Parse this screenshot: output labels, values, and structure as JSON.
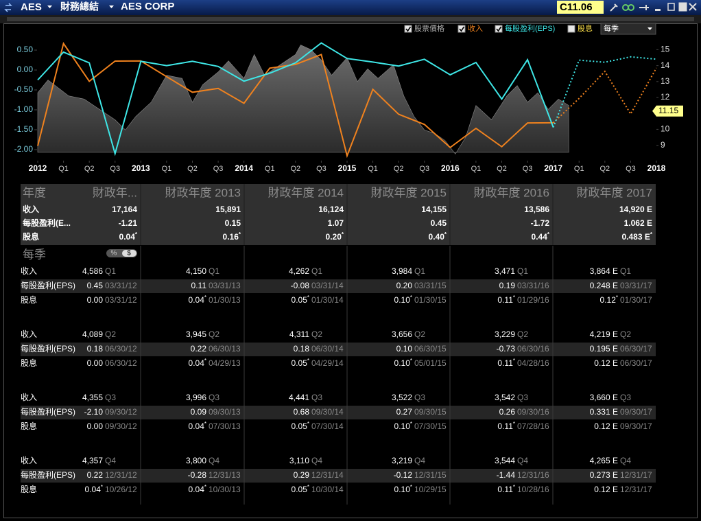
{
  "titlebar": {
    "symbol": "AES",
    "section": "財務總結",
    "company": "AES CORP",
    "quote": "C11.06"
  },
  "toolbar": {
    "dividend": "股息",
    "period": "每季"
  },
  "chart_data": {
    "type": "line",
    "xlim": [
      2012,
      2018
    ],
    "xticks": [
      {
        "value": 2012,
        "label": "2012"
      },
      {
        "value": 2012.25,
        "label": "Q1"
      },
      {
        "value": 2012.5,
        "label": "Q2"
      },
      {
        "value": 2012.75,
        "label": "Q3"
      },
      {
        "value": 2013,
        "label": "2013"
      },
      {
        "value": 2013.25,
        "label": "Q1"
      },
      {
        "value": 2013.5,
        "label": "Q2"
      },
      {
        "value": 2013.75,
        "label": "Q3"
      },
      {
        "value": 2014,
        "label": "2014"
      },
      {
        "value": 2014.25,
        "label": "Q1"
      },
      {
        "value": 2014.5,
        "label": "Q2"
      },
      {
        "value": 2014.75,
        "label": "Q3"
      },
      {
        "value": 2015,
        "label": "2015"
      },
      {
        "value": 2015.25,
        "label": "Q1"
      },
      {
        "value": 2015.5,
        "label": "Q2"
      },
      {
        "value": 2015.75,
        "label": "Q3"
      },
      {
        "value": 2016,
        "label": "2016"
      },
      {
        "value": 2016.25,
        "label": "Q1"
      },
      {
        "value": 2016.5,
        "label": "Q2"
      },
      {
        "value": 2016.75,
        "label": "Q3"
      },
      {
        "value": 2017,
        "label": "2017"
      },
      {
        "value": 2017.25,
        "label": "Q1"
      },
      {
        "value": 2017.5,
        "label": "Q2"
      },
      {
        "value": 2017.75,
        "label": "Q3"
      },
      {
        "value": 2018,
        "label": "2018"
      }
    ],
    "ylim": [
      -2.25,
      0.75
    ],
    "yticks": [
      {
        "value": 0.5,
        "label": "0.50"
      },
      {
        "value": 0,
        "label": "0.00"
      },
      {
        "value": -0.5,
        "label": "-0.50"
      },
      {
        "value": -1,
        "label": "-1.00"
      },
      {
        "value": -1.5,
        "label": "-1.50"
      },
      {
        "value": -2,
        "label": "-2.00"
      }
    ],
    "y2lim": [
      8.1,
      15.6
    ],
    "y2ticks": [
      9,
      10,
      11,
      12,
      13,
      14,
      15
    ],
    "y3lim": [
      3060,
      4630
    ],
    "last_price": 11.15,
    "series": [
      {
        "name": "股票價格",
        "color": "#9a9a9a",
        "axis": "y2",
        "fill": "area",
        "x": [
          2012.0,
          2012.1,
          2012.2,
          2012.3,
          2012.45,
          2012.6,
          2012.75,
          2012.85,
          2012.95,
          2013.1,
          2013.25,
          2013.4,
          2013.5,
          2013.6,
          2013.75,
          2013.85,
          2014.0,
          2014.1,
          2014.2,
          2014.35,
          2014.5,
          2014.55,
          2014.65,
          2014.75,
          2014.85,
          2015.0,
          2015.1,
          2015.2,
          2015.3,
          2015.45,
          2015.55,
          2015.65,
          2015.75,
          2015.85,
          2015.95,
          2016.05,
          2016.15,
          2016.25,
          2016.4,
          2016.55,
          2016.65,
          2016.75,
          2016.85,
          2016.95,
          2017.05,
          2017.15
        ],
        "values": [
          12.3,
          13.1,
          12.6,
          12.1,
          11.9,
          11.25,
          10.6,
          9.96,
          10.8,
          11.7,
          13.4,
          13.2,
          11.7,
          12.8,
          13.6,
          14.3,
          13.2,
          14.7,
          13.4,
          14.05,
          14.7,
          15.3,
          15,
          14.35,
          13.4,
          14.5,
          13,
          13.8,
          13.2,
          14.05,
          12.1,
          10.8,
          9.96,
          9.74,
          9.3,
          8.45,
          9.5,
          11.5,
          10.6,
          12.1,
          12.75,
          11.7,
          12.3,
          11.25,
          11.9,
          11.5
        ]
      },
      {
        "name": "收入",
        "color": "#f0821e",
        "axis": "y3",
        "estimate_from": 20,
        "x": [
          2012,
          2012.25,
          2012.5,
          2012.75,
          2013,
          2013.25,
          2013.5,
          2013.75,
          2014,
          2014.25,
          2014.5,
          2014.75,
          2015,
          2015.25,
          2015.5,
          2015.75,
          2016,
          2016.25,
          2016.5,
          2016.75,
          2017,
          2017.25,
          2017.5,
          2017.75,
          2018
        ],
        "values": [
          3240,
          4586,
          4089,
          4355,
          4357,
          4150,
          3945,
          3996,
          3800,
          4262,
          4311,
          4441,
          3110,
          3984,
          3656,
          3522,
          3219,
          3471,
          3229,
          3542,
          3544,
          3864,
          4219,
          3660,
          4265
        ]
      },
      {
        "name": "每股盈利(EPS)",
        "color": "#3ee6e6",
        "axis": "y",
        "estimate_from": 20,
        "x": [
          2012,
          2012.25,
          2012.5,
          2012.75,
          2013,
          2013.25,
          2013.5,
          2013.75,
          2014,
          2014.25,
          2014.5,
          2014.75,
          2015,
          2015.25,
          2015.5,
          2015.75,
          2016,
          2016.25,
          2016.5,
          2016.75,
          2017,
          2017.25,
          2017.5,
          2017.75,
          2018
        ],
        "values": [
          -0.25,
          0.45,
          0.18,
          -2.1,
          0.22,
          0.11,
          0.22,
          0.09,
          -0.28,
          -0.08,
          0.18,
          0.68,
          0.29,
          0.2,
          0.1,
          0.27,
          -0.12,
          0.19,
          -0.73,
          0.26,
          -1.44,
          0.248,
          0.195,
          0.331,
          0.273
        ]
      }
    ]
  },
  "annual": {
    "header": [
      "年度",
      "財政年...",
      "財政年度 2013",
      "財政年度 2014",
      "財政年度 2015",
      "財政年度 2016",
      "財政年度 2017"
    ],
    "rows": [
      {
        "label": "收入",
        "values": [
          "17,164",
          "15,891",
          "16,124",
          "14,155",
          "13,586",
          "14,920 E"
        ]
      },
      {
        "label": "每股盈利(E...",
        "values": [
          "-1.21",
          "0.15",
          "1.07",
          "0.45",
          "-1.72",
          "1.062 E"
        ]
      },
      {
        "label": "股息",
        "values": [
          "0.04*",
          "0.16*",
          "0.20*",
          "0.40*",
          "0.44*",
          "0.483 E*"
        ]
      }
    ]
  },
  "quarterly": {
    "title": "每季",
    "toggle": [
      "%",
      "$"
    ],
    "row_labels": [
      "收入",
      "每股盈利(EPS)",
      "股息"
    ],
    "blocks": [
      {
        "quarter": "Q1",
        "cells": [
          {
            "revenue": "4,586",
            "eps": "0.45",
            "eps_date": "03/31/12",
            "div": "0.00",
            "div_date": "03/31/12"
          },
          {
            "revenue": "4,150",
            "eps": "0.11",
            "eps_date": "03/31/13",
            "div": "0.04*",
            "div_date": "01/30/13"
          },
          {
            "revenue": "4,262",
            "eps": "-0.08",
            "eps_date": "03/31/14",
            "div": "0.05*",
            "div_date": "01/30/14"
          },
          {
            "revenue": "3,984",
            "eps": "0.20",
            "eps_date": "03/31/15",
            "div": "0.10*",
            "div_date": "01/30/15"
          },
          {
            "revenue": "3,471",
            "eps": "0.19",
            "eps_date": "03/31/16",
            "div": "0.11*",
            "div_date": "01/29/16"
          },
          {
            "revenue": "3,864 E",
            "eps": "0.248 E",
            "eps_date": "03/31/17",
            "div": "0.12*",
            "div_date": "01/30/17"
          }
        ]
      },
      {
        "quarter": "Q2",
        "cells": [
          {
            "revenue": "4,089",
            "eps": "0.18",
            "eps_date": "06/30/12",
            "div": "0.00",
            "div_date": "06/30/12"
          },
          {
            "revenue": "3,945",
            "eps": "0.22",
            "eps_date": "06/30/13",
            "div": "0.04*",
            "div_date": "04/29/13"
          },
          {
            "revenue": "4,311",
            "eps": "0.18",
            "eps_date": "06/30/14",
            "div": "0.05*",
            "div_date": "04/29/14"
          },
          {
            "revenue": "3,656",
            "eps": "0.10",
            "eps_date": "06/30/15",
            "div": "0.10*",
            "div_date": "05/01/15"
          },
          {
            "revenue": "3,229",
            "eps": "-0.73",
            "eps_date": "06/30/16",
            "div": "0.11*",
            "div_date": "04/28/16"
          },
          {
            "revenue": "4,219 E",
            "eps": "0.195 E",
            "eps_date": "06/30/17",
            "div": "0.12 E",
            "div_date": "06/30/17"
          }
        ]
      },
      {
        "quarter": "Q3",
        "cells": [
          {
            "revenue": "4,355",
            "eps": "-2.10",
            "eps_date": "09/30/12",
            "div": "0.00",
            "div_date": "09/30/12"
          },
          {
            "revenue": "3,996",
            "eps": "0.09",
            "eps_date": "09/30/13",
            "div": "0.04*",
            "div_date": "07/30/13"
          },
          {
            "revenue": "4,441",
            "eps": "0.68",
            "eps_date": "09/30/14",
            "div": "0.05*",
            "div_date": "07/30/14"
          },
          {
            "revenue": "3,522",
            "eps": "0.27",
            "eps_date": "09/30/15",
            "div": "0.10*",
            "div_date": "07/30/15"
          },
          {
            "revenue": "3,542",
            "eps": "0.26",
            "eps_date": "09/30/16",
            "div": "0.11*",
            "div_date": "07/28/16"
          },
          {
            "revenue": "3,660 E",
            "eps": "0.331 E",
            "eps_date": "09/30/17",
            "div": "0.12 E",
            "div_date": "09/30/17"
          }
        ]
      },
      {
        "quarter": "Q4",
        "cells": [
          {
            "revenue": "4,357",
            "eps": "0.22",
            "eps_date": "12/31/12",
            "div": "0.04*",
            "div_date": "10/26/12"
          },
          {
            "revenue": "3,800",
            "eps": "-0.28",
            "eps_date": "12/31/13",
            "div": "0.04*",
            "div_date": "10/30/13"
          },
          {
            "revenue": "3,110",
            "eps": "0.29",
            "eps_date": "12/31/14",
            "div": "0.05*",
            "div_date": "10/30/14"
          },
          {
            "revenue": "3,219",
            "eps": "-0.12",
            "eps_date": "12/31/15",
            "div": "0.10*",
            "div_date": "10/29/15"
          },
          {
            "revenue": "3,544",
            "eps": "-1.44",
            "eps_date": "12/31/16",
            "div": "0.11*",
            "div_date": "10/28/16"
          },
          {
            "revenue": "4,265 E",
            "eps": "0.273 E",
            "eps_date": "12/31/17",
            "div": "0.12 E",
            "div_date": "12/31/17"
          }
        ]
      }
    ]
  }
}
